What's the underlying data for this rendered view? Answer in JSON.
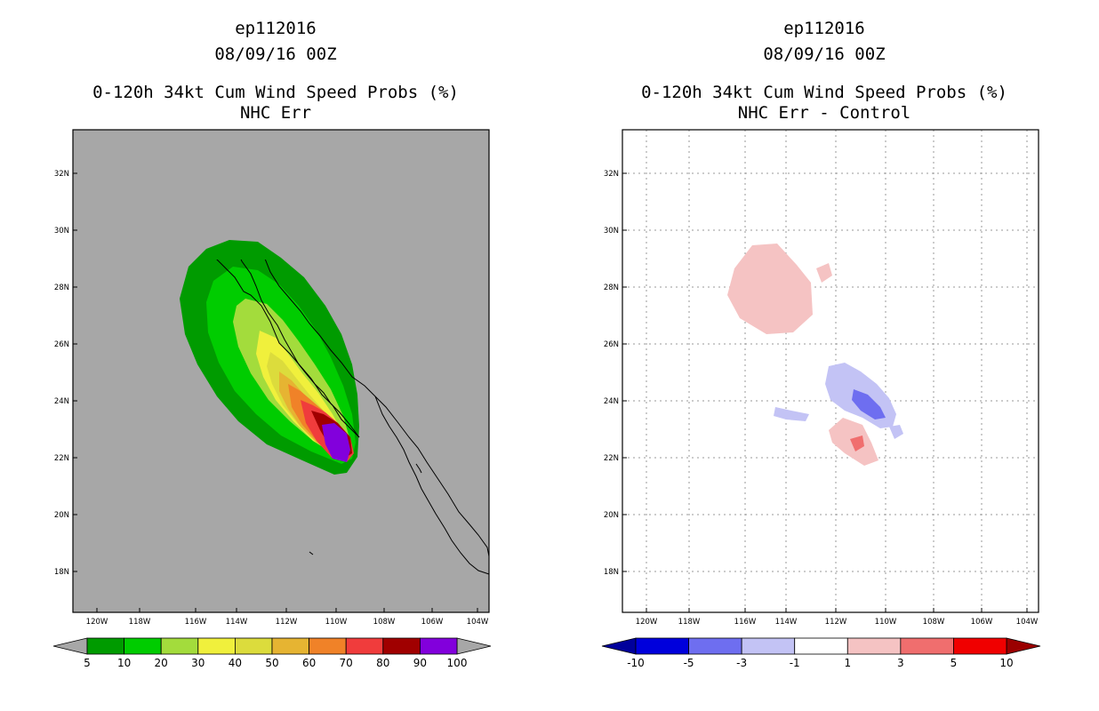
{
  "left_panel": {
    "storm_id": "ep112016",
    "datetime": "08/09/16 00Z",
    "title": "0-120h 34kt Cum Wind Speed Probs (%)",
    "subtitle": "NHC Err",
    "background_color": "#a7a7a7"
  },
  "right_panel": {
    "storm_id": "ep112016",
    "datetime": "08/09/16 00Z",
    "title": "0-120h 34kt Cum Wind Speed Probs (%)",
    "subtitle": "NHC Err - Control",
    "background_color": "#ffffff"
  },
  "axes": {
    "x_ticks": [
      "120W",
      "118W",
      "116W",
      "114W",
      "112W",
      "110W",
      "108W",
      "106W",
      "104W"
    ],
    "y_ticks": [
      "32N",
      "30N",
      "28N",
      "26N",
      "24N",
      "22N",
      "20N",
      "18N"
    ]
  },
  "left_colorbar": {
    "labels": [
      "5",
      "10",
      "20",
      "30",
      "40",
      "50",
      "60",
      "70",
      "80",
      "90",
      "100"
    ],
    "colors": [
      "#009b00",
      "#00cc00",
      "#a3dc3c",
      "#f0f03c",
      "#dcdc3c",
      "#e6b432",
      "#f08228",
      "#f03c3c",
      "#a00000",
      "#8200dc"
    ],
    "under_color": "#a7a7a7",
    "over_color": "#a7a7a7"
  },
  "right_colorbar": {
    "labels": [
      "-10",
      "-5",
      "-3",
      "-1",
      "1",
      "3",
      "5",
      "10"
    ],
    "colors": [
      "#0000dc",
      "#6e6ef0",
      "#c3c3f5",
      "#ffffff",
      "#f5c3c3",
      "#f06e6e",
      "#f00000"
    ],
    "under_color": "#00009b",
    "over_color": "#9b0000"
  }
}
